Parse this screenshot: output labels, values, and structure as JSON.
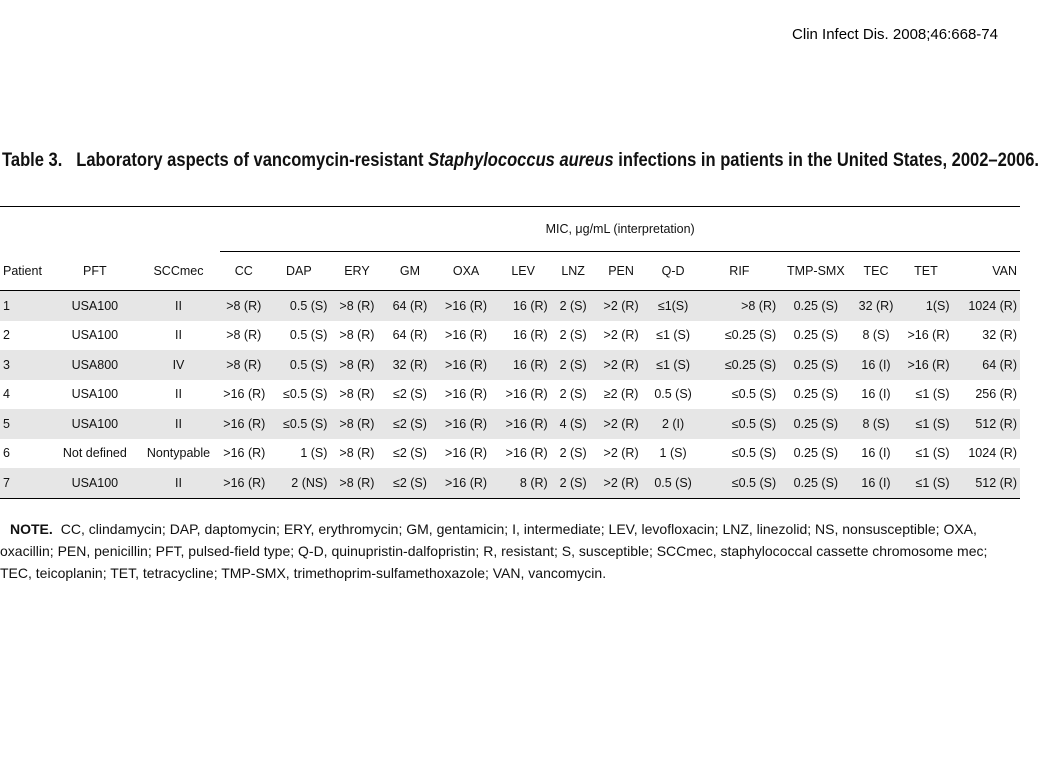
{
  "citation": "Clin Infect Dis. 2008;46:668-74",
  "caption": {
    "label": "Table 3.",
    "text_before": "Laboratory aspects of vancomycin-resistant ",
    "italic": "Staphylococcus aureus",
    "text_after": " infections in patients in the United States, 2002–2006."
  },
  "table": {
    "mic_header": "MIC, μg/mL (interpretation)",
    "columns": [
      "Patient",
      "PFT",
      "SCCmec",
      "CC",
      "DAP",
      "ERY",
      "GM",
      "OXA",
      "LEV",
      "LNZ",
      "PEN",
      "Q-D",
      "RIF",
      "TMP-SMX",
      "TEC",
      "TET",
      "VAN"
    ],
    "rows": [
      [
        "1",
        "USA100",
        "II",
        ">8 (R)",
        "0.5 (S)",
        ">8 (R)",
        "64 (R)",
        ">16 (R)",
        "16 (R)",
        "2 (S)",
        ">2 (R)",
        "≤1(S)",
        ">8 (R)",
        "0.25 (S)",
        "32 (R)",
        "1(S)",
        "1024 (R)"
      ],
      [
        "2",
        "USA100",
        "II",
        ">8 (R)",
        "0.5 (S)",
        ">8 (R)",
        "64 (R)",
        ">16 (R)",
        "16 (R)",
        "2 (S)",
        ">2 (R)",
        "≤1 (S)",
        "≤0.25 (S)",
        "0.25 (S)",
        "8 (S)",
        ">16 (R)",
        "32 (R)"
      ],
      [
        "3",
        "USA800",
        "IV",
        ">8 (R)",
        "0.5 (S)",
        ">8 (R)",
        "32 (R)",
        ">16 (R)",
        "16 (R)",
        "2 (S)",
        ">2 (R)",
        "≤1 (S)",
        "≤0.25 (S)",
        "0.25 (S)",
        "16 (I)",
        ">16 (R)",
        "64 (R)"
      ],
      [
        "4",
        "USA100",
        "II",
        ">16 (R)",
        "≤0.5 (S)",
        ">8 (R)",
        "≤2 (S)",
        ">16 (R)",
        ">16 (R)",
        "2 (S)",
        "≥2 (R)",
        "0.5 (S)",
        "≤0.5 (S)",
        "0.25 (S)",
        "16 (I)",
        "≤1 (S)",
        "256 (R)"
      ],
      [
        "5",
        "USA100",
        "II",
        ">16 (R)",
        "≤0.5 (S)",
        ">8 (R)",
        "≤2 (S)",
        ">16 (R)",
        ">16 (R)",
        "4 (S)",
        ">2 (R)",
        "2 (I)",
        "≤0.5 (S)",
        "0.25 (S)",
        "8 (S)",
        "≤1 (S)",
        "512 (R)"
      ],
      [
        "6",
        "Not defined",
        "Nontypable",
        ">16 (R)",
        "1 (S)",
        ">8 (R)",
        "≤2 (S)",
        ">16 (R)",
        ">16 (R)",
        "2 (S)",
        ">2 (R)",
        "1 (S)",
        "≤0.5 (S)",
        "0.25 (S)",
        "16 (I)",
        "≤1 (S)",
        "1024 (R)"
      ],
      [
        "7",
        "USA100",
        "II",
        ">16 (R)",
        "2 (NS)",
        ">8 (R)",
        "≤2 (S)",
        ">16 (R)",
        "8 (R)",
        "2 (S)",
        ">2 (R)",
        "0.5 (S)",
        "≤0.5 (S)",
        "0.25 (S)",
        "16 (I)",
        "≤1 (S)",
        "512 (R)"
      ]
    ]
  },
  "note": {
    "label": "NOTE.",
    "text": "CC, clindamycin; DAP, daptomycin; ERY, erythromycin; GM, gentamicin; I, intermediate; LEV, levofloxacin; LNZ, linezolid; NS, nonsusceptible; OXA, oxacillin; PEN, penicillin; PFT, pulsed-field type; Q-D, quinupristin-dalfopristin; R, resistant; S, susceptible; SCCmec, staphylococcal cassette chromosome mec; TEC, teicoplanin; TET, tetracycline; TMP-SMX, trimethoprim-sulfamethoxazole; VAN, vancomycin."
  }
}
